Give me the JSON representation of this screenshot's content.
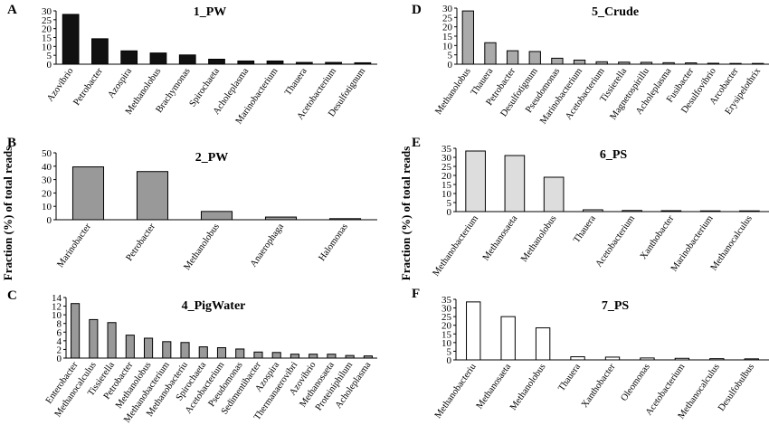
{
  "ylabel_left": "Fraction (%) of total reads",
  "ylabel_right": "Fraction (%) of total reads",
  "chart_data": [
    {
      "type": "bar",
      "panel": "A",
      "title": "1_PW",
      "fill": "#111111",
      "ylim": [
        0,
        30
      ],
      "yticks": [
        0,
        5,
        10,
        15,
        20,
        25,
        30
      ],
      "categories": [
        "Azovibrio",
        "Petrobacter",
        "Azospira",
        "Methanolobus",
        "Brachymonas",
        "Spirochaeta",
        "Acholeplasma",
        "Marinobacterium",
        "Thauera",
        "Acetobacterium",
        "Desulfotignum"
      ],
      "values": [
        28,
        14.3,
        7.5,
        6.3,
        5.2,
        2.8,
        1.8,
        1.8,
        1.0,
        1.0,
        0.8
      ]
    },
    {
      "type": "bar",
      "panel": "B",
      "title": "2_PW",
      "fill": "#999999",
      "ylim": [
        0,
        50
      ],
      "yticks": [
        0,
        10,
        20,
        30,
        40,
        50
      ],
      "categories": [
        "Marinobacter",
        "Petrobacter",
        "Methanolobus",
        "Anaerophaga",
        "Halomonas"
      ],
      "values": [
        39.5,
        36,
        6.2,
        2.0,
        0.8
      ]
    },
    {
      "type": "bar",
      "panel": "C",
      "title": "4_PigWater",
      "fill": "#999999",
      "ylim": [
        0,
        14
      ],
      "yticks": [
        0,
        2,
        4,
        6,
        8,
        10,
        12,
        14
      ],
      "categories": [
        "Enterobacter",
        "Methanocalculus",
        "Tissierella",
        "Petrobacter",
        "Methanolobus",
        "Methanobacterium",
        "Methanobacteriu",
        "Spirochaeta",
        "Acetobacterium",
        "Pseudomonas",
        "Sedimentibacter",
        "Azospira",
        "Thermanaerovibri",
        "Azovibrio",
        "Methanosaeta",
        "Proteiniphilum",
        "Acholeplasma"
      ],
      "values": [
        12.6,
        8.9,
        8.2,
        5.3,
        4.6,
        3.8,
        3.6,
        2.6,
        2.4,
        2.1,
        1.4,
        1.3,
        0.9,
        0.9,
        0.9,
        0.6,
        0.5
      ]
    },
    {
      "type": "bar",
      "panel": "D",
      "title": "5_Crude",
      "fill": "#aaaaaa",
      "ylim": [
        0,
        30
      ],
      "yticks": [
        0,
        5,
        10,
        15,
        20,
        25,
        30
      ],
      "categories": [
        "Methanolobus",
        "Thauera",
        "Petrobacter",
        "Desulfotignum",
        "Pseudomonas",
        "Marinobacterium",
        "Acetobacterium",
        "Tissierella",
        "Magnetospirillu",
        "Acholeplasma",
        "Fusibacter",
        "Desulfovibrio",
        "Arcobacter",
        "Erysipelothrix"
      ],
      "values": [
        28.5,
        11.5,
        7.2,
        6.8,
        3.2,
        2.2,
        1.3,
        1.1,
        1.0,
        0.8,
        0.7,
        0.5,
        0.4,
        0.4
      ]
    },
    {
      "type": "bar",
      "panel": "E",
      "title": "6_PS",
      "fill": "#dddddd",
      "ylim": [
        0,
        35
      ],
      "yticks": [
        0,
        5,
        10,
        15,
        20,
        25,
        30,
        35
      ],
      "categories": [
        "Methanobacterium",
        "Methanosaeta",
        "Methanolobus",
        "Thauera",
        "Acetobacterium",
        "Xanthobacter",
        "Marinobacterium",
        "Methanocalculus"
      ],
      "values": [
        33.5,
        31,
        19,
        1.0,
        0.6,
        0.5,
        0.4,
        0.4
      ]
    },
    {
      "type": "bar",
      "panel": "F",
      "title": "7_PS",
      "fill": "#ffffff",
      "ylim": [
        0,
        35
      ],
      "yticks": [
        0,
        5,
        10,
        15,
        20,
        25,
        30,
        35
      ],
      "categories": [
        "Methanobacteriu",
        "Methanosaeta",
        "Methanolobus",
        "Thauera",
        "Xanthobacter",
        "Oleomonas",
        "Acetobacterium",
        "Methanocalculus",
        "Desulfobulbus"
      ],
      "values": [
        33.5,
        25,
        18.5,
        1.8,
        1.6,
        1.1,
        0.9,
        0.7,
        0.6
      ]
    }
  ]
}
